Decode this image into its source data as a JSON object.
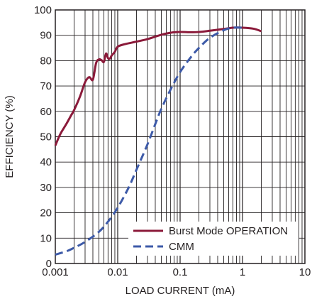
{
  "chart_data": {
    "type": "line",
    "xscale": "log",
    "xlabel": "LOAD CURRENT (mA)",
    "ylabel": "EFFICIENCY (%)",
    "xlim": [
      0.001,
      10
    ],
    "ylim": [
      0,
      100
    ],
    "x_tick_labels": [
      "0.001",
      "0.01",
      "0.1",
      "1",
      "10"
    ],
    "y_tick_labels": [
      "0",
      "10",
      "20",
      "30",
      "40",
      "50",
      "60",
      "70",
      "80",
      "90",
      "100"
    ],
    "grid": true,
    "legend_position": "bottom-right",
    "series": [
      {
        "name": "Burst Mode OPERATION",
        "color": "#8b1a3a",
        "style": "solid",
        "points": [
          [
            0.001,
            46.5
          ],
          [
            0.0012,
            51
          ],
          [
            0.0015,
            55
          ],
          [
            0.0018,
            58.5
          ],
          [
            0.002,
            60.5
          ],
          [
            0.0025,
            66
          ],
          [
            0.003,
            71.5
          ],
          [
            0.0035,
            73.5
          ],
          [
            0.004,
            72.5
          ],
          [
            0.0045,
            79
          ],
          [
            0.005,
            80.5
          ],
          [
            0.0055,
            80.2
          ],
          [
            0.006,
            79.5
          ],
          [
            0.0065,
            82.8
          ],
          [
            0.007,
            81
          ],
          [
            0.0075,
            80.8
          ],
          [
            0.008,
            82
          ],
          [
            0.009,
            83.5
          ],
          [
            0.01,
            85.5
          ],
          [
            0.013,
            86.5
          ],
          [
            0.02,
            87.5
          ],
          [
            0.03,
            88.5
          ],
          [
            0.05,
            90.2
          ],
          [
            0.07,
            91
          ],
          [
            0.1,
            91.3
          ],
          [
            0.15,
            91.2
          ],
          [
            0.2,
            91.3
          ],
          [
            0.3,
            91.8
          ],
          [
            0.5,
            92.5
          ],
          [
            0.7,
            93
          ],
          [
            1,
            93
          ],
          [
            1.5,
            92.6
          ],
          [
            2,
            91.6
          ]
        ]
      },
      {
        "name": "CMM",
        "color": "#3d5aa8",
        "style": "dashed",
        "points": [
          [
            0.001,
            3.5
          ],
          [
            0.0015,
            4.8
          ],
          [
            0.002,
            6.2
          ],
          [
            0.003,
            8.5
          ],
          [
            0.005,
            12.5
          ],
          [
            0.007,
            16.5
          ],
          [
            0.01,
            22
          ],
          [
            0.015,
            30
          ],
          [
            0.02,
            37
          ],
          [
            0.03,
            47
          ],
          [
            0.04,
            55
          ],
          [
            0.05,
            61
          ],
          [
            0.07,
            68.5
          ],
          [
            0.1,
            75.5
          ],
          [
            0.15,
            81.5
          ],
          [
            0.2,
            85
          ],
          [
            0.3,
            89
          ],
          [
            0.5,
            92
          ],
          [
            0.7,
            93
          ],
          [
            1,
            93
          ]
        ]
      }
    ]
  }
}
